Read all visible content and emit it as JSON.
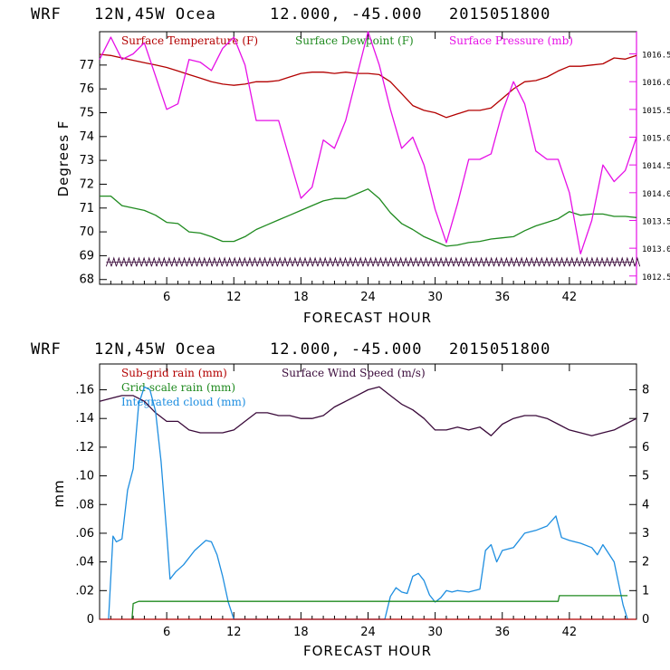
{
  "colors": {
    "temperature": "#b30000",
    "dewpoint": "#1f8a1f",
    "pressure": "#e60fe6",
    "subgrid": "#b30000",
    "gridscale": "#1f8a1f",
    "cloud": "#1e8ee0",
    "wind": "#3a0a3a",
    "frame_top": "#000000",
    "frame_pressure_axis": "#e60fe6"
  },
  "top": {
    "header": {
      "model": "WRF",
      "location": "12N,45W Ocea",
      "coords": "12.000, -45.000",
      "init": "2015051800"
    },
    "xlabel": "FORECAST HOUR",
    "ylabel_left": "Degrees F",
    "legend": [
      {
        "label": "Surface Temperature (F)",
        "color_key": "temperature"
      },
      {
        "label": "Surface Dewpoint (F)",
        "color_key": "dewpoint"
      },
      {
        "label": "Surface Pressure (mb)",
        "color_key": "pressure"
      }
    ],
    "xticks": [
      "6",
      "12",
      "18",
      "24",
      "30",
      "36",
      "42"
    ],
    "yticks_left": [
      "68",
      "69",
      "70",
      "71",
      "72",
      "73",
      "74",
      "75",
      "76",
      "77"
    ],
    "yticks_right": [
      "1012.5",
      "1013.0",
      "1013.5",
      "1014.0",
      "1014.5",
      "1015.0",
      "1015.5",
      "1016.0",
      "1016.5"
    ]
  },
  "bottom": {
    "header": {
      "model": "WRF",
      "location": "12N,45W Ocea",
      "coords": "12.000, -45.000",
      "init": "2015051800"
    },
    "xlabel": "FORECAST HOUR",
    "ylabel_left": "mm",
    "legend": [
      {
        "label": "Sub-grid rain (mm)",
        "color_key": "subgrid"
      },
      {
        "label": "Surface Wind Speed (m/s)",
        "color_key": "wind"
      },
      {
        "label": "Grid-scale rain (mm)",
        "color_key": "gridscale"
      },
      {
        "label": "Integrated cloud (mm)",
        "color_key": "cloud"
      }
    ],
    "xticks": [
      "6",
      "12",
      "18",
      "24",
      "30",
      "36",
      "42"
    ],
    "yticks_left": [
      "0",
      ".02",
      ".04",
      ".06",
      ".08",
      ".10",
      ".12",
      ".14",
      ".16"
    ],
    "yticks_right": [
      "0",
      "1",
      "2",
      "3",
      "4",
      "5",
      "6",
      "7",
      "8"
    ]
  },
  "chart_data": [
    {
      "type": "line",
      "xlim": [
        0,
        48
      ],
      "ylim": [
        67.8,
        78.4
      ],
      "y2lim": [
        1012.35,
        1016.9
      ],
      "xlabel": "FORECAST HOUR",
      "ylabel": "Degrees F",
      "grid": false,
      "legend_position": "top",
      "series": [
        {
          "name": "Surface Temperature (F)",
          "axis": "left",
          "color_key": "temperature",
          "x": [
            0,
            1,
            2,
            3,
            4,
            5,
            6,
            7,
            8,
            9,
            10,
            11,
            12,
            13,
            14,
            15,
            16,
            17,
            18,
            19,
            20,
            21,
            22,
            23,
            24,
            25,
            26,
            27,
            28,
            29,
            30,
            31,
            32,
            33,
            34,
            35,
            36,
            37,
            38,
            39,
            40,
            41,
            42,
            43,
            44,
            45,
            46,
            47,
            48
          ],
          "y": [
            77.45,
            77.4,
            77.3,
            77.2,
            77.1,
            77.0,
            76.9,
            76.75,
            76.6,
            76.45,
            76.3,
            76.2,
            76.15,
            76.2,
            76.3,
            76.3,
            76.35,
            76.5,
            76.65,
            76.7,
            76.7,
            76.65,
            76.7,
            76.65,
            76.65,
            76.6,
            76.3,
            75.8,
            75.3,
            75.1,
            75.0,
            74.8,
            74.95,
            75.1,
            75.1,
            75.2,
            75.6,
            76.0,
            76.3,
            76.35,
            76.5,
            76.75,
            76.95,
            76.95,
            77.0,
            77.05,
            77.3,
            77.25,
            77.4
          ]
        },
        {
          "name": "Surface Dewpoint (F)",
          "axis": "left",
          "color_key": "dewpoint",
          "x": [
            0,
            1,
            2,
            3,
            4,
            5,
            6,
            7,
            8,
            9,
            10,
            11,
            12,
            13,
            14,
            15,
            16,
            17,
            18,
            19,
            20,
            21,
            22,
            23,
            24,
            25,
            26,
            27,
            28,
            29,
            30,
            31,
            32,
            33,
            34,
            35,
            36,
            37,
            38,
            39,
            40,
            41,
            42,
            43,
            44,
            45,
            46,
            47,
            48
          ],
          "y": [
            71.5,
            71.5,
            71.1,
            71.0,
            70.9,
            70.7,
            70.4,
            70.35,
            70.0,
            69.95,
            69.8,
            69.6,
            69.6,
            69.8,
            70.1,
            70.3,
            70.5,
            70.7,
            70.9,
            71.1,
            71.3,
            71.4,
            71.4,
            71.6,
            71.8,
            71.4,
            70.8,
            70.35,
            70.1,
            69.8,
            69.6,
            69.4,
            69.45,
            69.55,
            69.6,
            69.7,
            69.75,
            69.8,
            70.05,
            70.25,
            70.4,
            70.55,
            70.85,
            70.7,
            70.75,
            70.75,
            70.65,
            70.65,
            70.6
          ]
        },
        {
          "name": "Surface Pressure (mb)",
          "axis": "right",
          "color_key": "pressure",
          "x": [
            0,
            1,
            2,
            3,
            4,
            5,
            6,
            7,
            8,
            9,
            10,
            11,
            12,
            13,
            14,
            15,
            16,
            17,
            18,
            19,
            20,
            21,
            22,
            23,
            24,
            25,
            26,
            27,
            28,
            29,
            30,
            31,
            32,
            33,
            34,
            35,
            36,
            37,
            38,
            39,
            40,
            41,
            42,
            43,
            44,
            45,
            46,
            47,
            48
          ],
          "y": [
            1016.4,
            1016.8,
            1016.4,
            1016.5,
            1016.7,
            1016.1,
            1015.5,
            1015.6,
            1016.4,
            1016.35,
            1016.2,
            1016.6,
            1016.8,
            1016.3,
            1015.3,
            1015.3,
            1015.3,
            1014.6,
            1013.9,
            1014.1,
            1014.95,
            1014.8,
            1015.3,
            1016.1,
            1016.9,
            1016.3,
            1015.5,
            1014.8,
            1015.0,
            1014.5,
            1013.7,
            1013.1,
            1013.8,
            1014.6,
            1014.6,
            1014.7,
            1015.45,
            1016.0,
            1015.6,
            1014.75,
            1014.6,
            1014.6,
            1014.0,
            1012.9,
            1013.5,
            1014.5,
            1014.2,
            1014.4,
            1015.0
          ]
        }
      ],
      "trace_near_bottom": {
        "y_range": [
          68.55,
          68.9
        ],
        "color_key": "wind",
        "note": "hatched zigzag trace"
      }
    },
    {
      "type": "line",
      "xlim": [
        0,
        48
      ],
      "ylim": [
        0,
        0.178
      ],
      "y2lim": [
        0,
        8.9
      ],
      "xlabel": "FORECAST HOUR",
      "ylabel": "mm",
      "grid": false,
      "legend_position": "top",
      "series": [
        {
          "name": "Surface Wind Speed (m/s)",
          "axis": "right",
          "color_key": "wind",
          "x": [
            0,
            1,
            2,
            3,
            4,
            5,
            6,
            7,
            8,
            9,
            10,
            11,
            12,
            13,
            14,
            15,
            16,
            17,
            18,
            19,
            20,
            21,
            22,
            23,
            24,
            25,
            26,
            27,
            28,
            29,
            30,
            31,
            32,
            33,
            34,
            35,
            36,
            37,
            38,
            39,
            40,
            41,
            42,
            43,
            44,
            45,
            46,
            47,
            48
          ],
          "y": [
            7.6,
            7.7,
            7.8,
            7.8,
            7.6,
            7.2,
            6.9,
            6.9,
            6.6,
            6.5,
            6.5,
            6.5,
            6.6,
            6.9,
            7.2,
            7.2,
            7.1,
            7.1,
            7.0,
            7.0,
            7.1,
            7.4,
            7.6,
            7.8,
            8.0,
            8.1,
            7.8,
            7.5,
            7.3,
            7.0,
            6.6,
            6.6,
            6.7,
            6.6,
            6.7,
            6.4,
            6.8,
            7.0,
            7.1,
            7.1,
            7.0,
            6.8,
            6.6,
            6.5,
            6.4,
            6.5,
            6.6,
            6.8,
            7.0
          ]
        },
        {
          "name": "Integrated cloud (mm)",
          "axis": "left",
          "color_key": "cloud",
          "x": [
            0.8,
            1.2,
            1.5,
            2.0,
            2.5,
            3.0,
            3.5,
            4.0,
            4.5,
            5.0,
            5.5,
            6.0,
            6.3,
            6.8,
            7.5,
            8.5,
            9.5,
            10.0,
            10.5,
            11.0,
            11.5,
            12.0,
            12.3,
            25.5,
            26.0,
            26.5,
            27.0,
            27.5,
            28.0,
            28.5,
            29.0,
            29.5,
            30.0,
            30.5,
            31.0,
            31.5,
            32.0,
            33.0,
            34.0,
            34.5,
            35.0,
            35.5,
            36.0,
            37.0,
            38.0,
            39.0,
            40.0,
            40.8,
            41.3,
            42.0,
            43.0,
            44.0,
            44.5,
            45.0,
            46.0,
            46.8,
            47.2
          ],
          "y": [
            0.0,
            0.058,
            0.054,
            0.056,
            0.09,
            0.105,
            0.15,
            0.162,
            0.16,
            0.145,
            0.11,
            0.06,
            0.028,
            0.033,
            0.038,
            0.048,
            0.055,
            0.054,
            0.045,
            0.03,
            0.012,
            0.0,
            0.0,
            0.0,
            0.016,
            0.022,
            0.019,
            0.018,
            0.03,
            0.032,
            0.027,
            0.017,
            0.012,
            0.015,
            0.02,
            0.019,
            0.02,
            0.019,
            0.021,
            0.048,
            0.052,
            0.04,
            0.048,
            0.05,
            0.06,
            0.062,
            0.065,
            0.072,
            0.057,
            0.055,
            0.053,
            0.05,
            0.045,
            0.052,
            0.04,
            0.01,
            0.0
          ]
        },
        {
          "name": "Grid-scale rain (mm)",
          "axis": "left",
          "color_key": "gridscale",
          "x": [
            2.9,
            3.0,
            3.5,
            41.0,
            41.1,
            47.2
          ],
          "y": [
            0.0,
            0.011,
            0.0125,
            0.0125,
            0.0165,
            0.0165
          ]
        },
        {
          "name": "Sub-grid rain (mm)",
          "axis": "left",
          "color_key": "subgrid",
          "x": [
            0,
            48
          ],
          "y": [
            0,
            0
          ]
        }
      ]
    }
  ]
}
